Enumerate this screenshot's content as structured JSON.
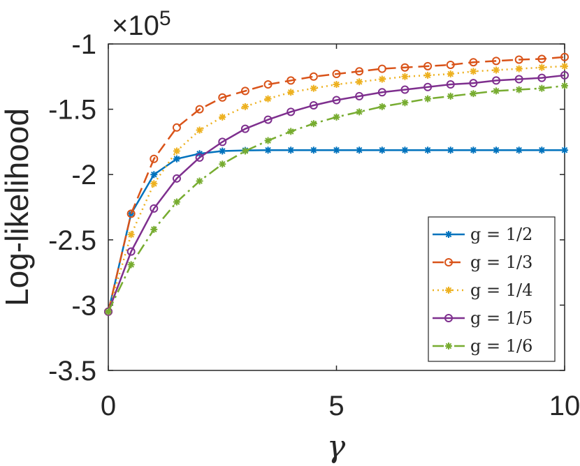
{
  "chart_data": {
    "type": "line",
    "title": "",
    "xlabel": "γ",
    "ylabel": "Log-likelihood",
    "y_multiplier_label": "×10",
    "y_multiplier_exponent": "5",
    "xlim": [
      0,
      10
    ],
    "ylim": [
      -3.5,
      -1
    ],
    "xticks": [
      0,
      5,
      10
    ],
    "xtick_labels": [
      "0",
      "5",
      "10"
    ],
    "yticks": [
      -3.5,
      -3,
      -2.5,
      -2,
      -1.5,
      -1
    ],
    "ytick_labels": [
      "-3.5",
      "-3",
      "-2.5",
      "-2",
      "-1.5",
      "-1"
    ],
    "grid": false,
    "legend_position": "bottom-right",
    "x": [
      0,
      0.5,
      1,
      1.5,
      2,
      2.5,
      3,
      3.5,
      4,
      4.5,
      5,
      5.5,
      6,
      6.5,
      7,
      7.5,
      8,
      8.5,
      9,
      9.5,
      10
    ],
    "series": [
      {
        "name": "g = 1/2",
        "color": "#0072BD",
        "dash": "",
        "marker": "asterisk",
        "values": [
          -3.05,
          -2.3,
          -2.0,
          -1.88,
          -1.84,
          -1.82,
          -1.815,
          -1.813,
          -1.813,
          -1.813,
          -1.813,
          -1.813,
          -1.813,
          -1.813,
          -1.813,
          -1.813,
          -1.813,
          -1.813,
          -1.813,
          -1.813,
          -1.813
        ]
      },
      {
        "name": "g = 1/3",
        "color": "#D95319",
        "dash": "16,8",
        "marker": "circle",
        "values": [
          -3.05,
          -2.3,
          -1.88,
          -1.64,
          -1.5,
          -1.41,
          -1.36,
          -1.31,
          -1.28,
          -1.25,
          -1.23,
          -1.21,
          -1.19,
          -1.18,
          -1.17,
          -1.16,
          -1.14,
          -1.13,
          -1.12,
          -1.115,
          -1.1
        ]
      },
      {
        "name": "g = 1/4",
        "color": "#EDB120",
        "dash": "2,5",
        "marker": "asterisk",
        "values": [
          -3.05,
          -2.46,
          -2.07,
          -1.82,
          -1.66,
          -1.56,
          -1.48,
          -1.42,
          -1.37,
          -1.34,
          -1.31,
          -1.29,
          -1.27,
          -1.25,
          -1.24,
          -1.23,
          -1.21,
          -1.2,
          -1.19,
          -1.18,
          -1.17
        ]
      },
      {
        "name": "g = 1/5",
        "color": "#7E2F8E",
        "dash": "",
        "marker": "circle",
        "values": [
          -3.05,
          -2.59,
          -2.26,
          -2.03,
          -1.87,
          -1.75,
          -1.65,
          -1.58,
          -1.52,
          -1.47,
          -1.43,
          -1.4,
          -1.37,
          -1.35,
          -1.33,
          -1.31,
          -1.3,
          -1.28,
          -1.27,
          -1.26,
          -1.24
        ]
      },
      {
        "name": "g = 1/6",
        "color": "#77AC30",
        "dash": "16,6,3,6",
        "marker": "asterisk",
        "values": [
          -3.05,
          -2.69,
          -2.42,
          -2.21,
          -2.05,
          -1.92,
          -1.82,
          -1.74,
          -1.67,
          -1.61,
          -1.56,
          -1.52,
          -1.48,
          -1.45,
          -1.42,
          -1.4,
          -1.38,
          -1.36,
          -1.35,
          -1.34,
          -1.32
        ]
      }
    ]
  }
}
